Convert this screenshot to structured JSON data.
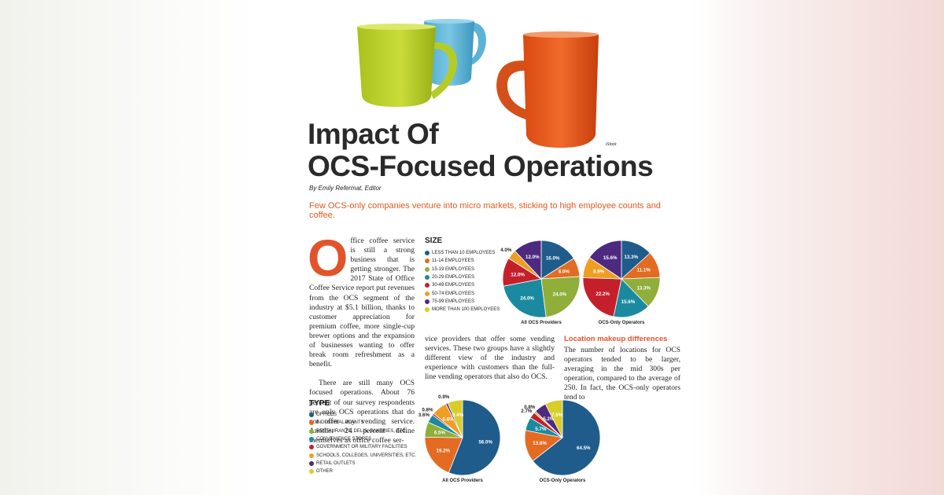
{
  "photo_credit": "iStock",
  "headline": {
    "line1": "Impact Of",
    "line2": "OCS-Focused Operations"
  },
  "byline": "By Emily Refermat, Editor",
  "deck": "Few OCS-only companies venture into micro markets, sticking to high employee counts and coffee.",
  "article": {
    "dropcap": "O",
    "col1_p1": "ffice coffee service is still a strong business that is getting stronger. The 2017 State of Office Coffee Service report put revenues from the OCS segment of the industry at $5.1 billion, thanks to customer appreciation for premium coffee, more single-cup brewer options and the expansion of businesses wanting to offer break room refreshment as a benefit.",
    "col1_p2": "There are still many OCS focused operations. About 76 percent of our survey respondents are only OCS operations that do not offer any vending service. Another 24 percent define themselves as office coffee ser-",
    "col2_p1": "vice providers that offer some vending services. These two groups have a slightly different view of the industry and experience with customers than the full-line vending operators that also do OCS.",
    "col3_heading": "Location makeup differences",
    "col3_p1": "The number of locations for OCS operators tended to be larger, averaging in the mid 300s per operation, compared to the average of 250. In fact, the OCS-only operators tend to"
  },
  "colors": [
    "#1f5c8c",
    "#e36b22",
    "#8fae3a",
    "#1b8aa0",
    "#c61f2c",
    "#ef9e24",
    "#4d2a7f",
    "#d9cd2a"
  ],
  "chart_data": [
    {
      "type": "pie",
      "title": "SIZE",
      "categories": [
        "LESS THAN 10 EMPLOYEES",
        "11-14 EMPLOYEES",
        "15-19 EMPLOYEES",
        "20-29 EMPLOYEES",
        "30-49 EMPLOYEES",
        "50-74 EMPLOYEES",
        "75-99 EMPLOYEES",
        "MORE THAN 100 EMPLOYEES"
      ],
      "series": [
        {
          "name": "All OCS Providers",
          "values": [
            16.0,
            8.0,
            24.0,
            24.0,
            12.0,
            4.0,
            12.0,
            0.0
          ]
        },
        {
          "name": "OCS-Only Operators",
          "values": [
            13.3,
            11.1,
            13.3,
            15.6,
            22.2,
            8.9,
            15.6,
            0.0
          ]
        }
      ]
    },
    {
      "type": "pie",
      "title": "TYPE",
      "categories": [
        "OFFICES",
        "INDUSTRIAL PLANTS",
        "RESTAURANTS, DELIS, BAKERIES, ETC.",
        "CONVENIENCE STORES",
        "GOVERNMENT OR MILITARY FACILITIES",
        "SCHOOLS, COLLEGES, UNIVERSITIES, ETC.",
        "RETAIL OUTLETS",
        "OTHER"
      ],
      "series": [
        {
          "name": "All OCS Providers",
          "values": [
            56.0,
            19.2,
            6.5,
            3.6,
            0.8,
            6.6,
            0.9,
            6.4
          ]
        },
        {
          "name": "OCS-Only Operators",
          "values": [
            64.5,
            13.8,
            0.0,
            5.7,
            2.7,
            0.8,
            5.2,
            7.5
          ]
        }
      ]
    }
  ]
}
